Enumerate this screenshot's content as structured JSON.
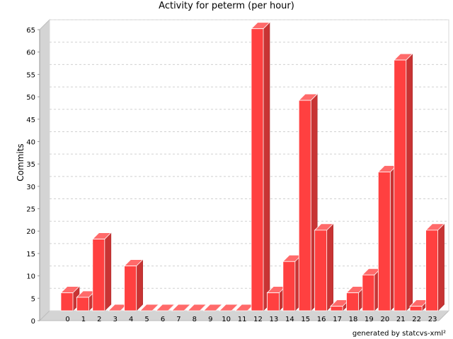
{
  "chart_data": {
    "type": "bar",
    "title": "Activity for peterm (per hour)",
    "xlabel": "",
    "ylabel": "Commits",
    "categories": [
      "0",
      "1",
      "2",
      "3",
      "4",
      "5",
      "6",
      "7",
      "8",
      "9",
      "10",
      "11",
      "12",
      "13",
      "14",
      "15",
      "16",
      "17",
      "18",
      "19",
      "20",
      "21",
      "22",
      "23"
    ],
    "values": [
      4,
      3,
      16,
      0,
      10,
      0,
      0,
      0,
      0,
      0,
      0,
      0,
      63,
      4,
      11,
      47,
      18,
      1,
      4,
      8,
      31,
      56,
      1,
      18
    ],
    "ylim": [
      0,
      65
    ],
    "yticks": [
      0,
      5,
      10,
      15,
      20,
      25,
      30,
      35,
      40,
      45,
      50,
      55,
      60,
      65
    ],
    "grid": true,
    "legend": "none",
    "bar_color": "#ff4040"
  },
  "footer": {
    "credit": "generated by statcvs-xml²"
  }
}
